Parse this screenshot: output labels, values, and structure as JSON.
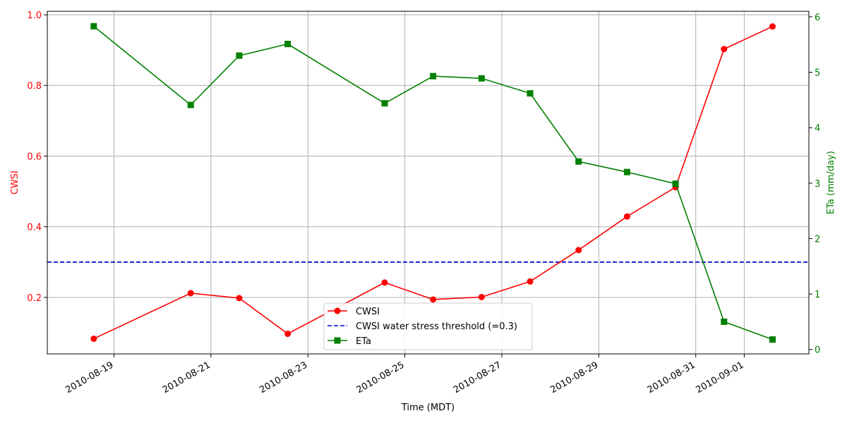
{
  "chart_data": {
    "type": "line",
    "title": "",
    "xlabel": "Time (MDT)",
    "ylabel_left": "CWSI",
    "ylabel_right": "ETa (mm/day)",
    "x": [
      "2010-08-18 14:00",
      "2010-08-20 14:00",
      "2010-08-21 14:00",
      "2010-08-22 14:00",
      "2010-08-24 14:00",
      "2010-08-25 14:00",
      "2010-08-26 14:00",
      "2010-08-27 14:00",
      "2010-08-28 14:00",
      "2010-08-29 14:00",
      "2010-08-30 14:00",
      "2010-08-31 14:00",
      "2010-09-01 14:00"
    ],
    "xlim": [
      "2010-08-17 15:00",
      "2010-09-02 08:00"
    ],
    "x_ticks": [
      "2010-08-19",
      "2010-08-21",
      "2010-08-23",
      "2010-08-25",
      "2010-08-27",
      "2010-08-29",
      "2010-08-31",
      "2010-09-01"
    ],
    "ylim_left": [
      0.04,
      1.01
    ],
    "yticks_left": [
      0.2,
      0.4,
      0.6,
      0.8,
      1.0
    ],
    "ytick_labels_left": [
      "0.2",
      "0.4",
      "0.6",
      "0.8",
      "1.0"
    ],
    "ylim_right": [
      -0.08,
      6.1
    ],
    "yticks_right": [
      0,
      1,
      2,
      3,
      4,
      5,
      6
    ],
    "ytick_labels_right": [
      "0",
      "1",
      "2",
      "3",
      "4",
      "5",
      "6"
    ],
    "grid": true,
    "legend_position": "lower-center",
    "series": [
      {
        "name": "CWSI",
        "axis": "left",
        "color": "#ff0000",
        "marker": "circle",
        "style": "solid",
        "values": [
          0.083,
          0.212,
          0.198,
          0.097,
          0.242,
          0.194,
          0.201,
          0.245,
          0.334,
          0.429,
          0.512,
          0.903,
          0.967
        ]
      },
      {
        "name": "CWSI water stress threshold (=0.3)",
        "axis": "left",
        "color": "#0000cc",
        "marker": "none",
        "style": "dashed",
        "constant": 0.3
      },
      {
        "name": "ETa",
        "axis": "right",
        "color": "#008000",
        "marker": "square",
        "style": "solid",
        "values": [
          5.83,
          4.41,
          5.3,
          5.51,
          4.44,
          4.93,
          4.89,
          4.62,
          3.39,
          3.2,
          2.99,
          0.5,
          0.18
        ]
      }
    ],
    "colors": {
      "left_axis": "#ff0000",
      "right_axis": "#008000",
      "grid": "#b0b0b0"
    }
  }
}
